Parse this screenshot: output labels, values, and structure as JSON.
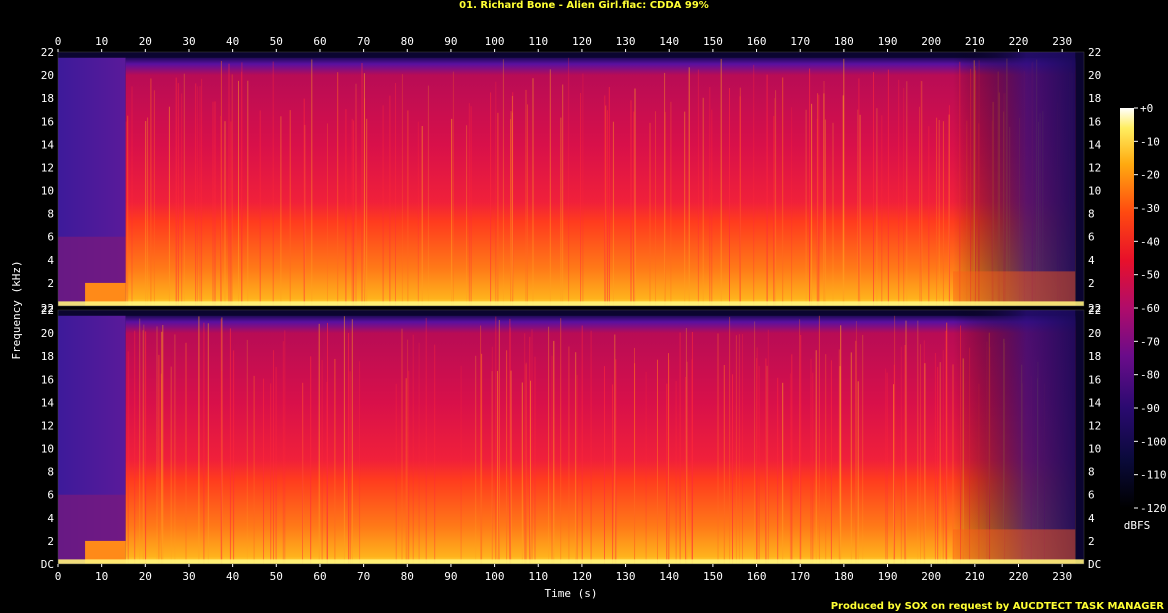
{
  "title": "01. Richard Bone - Alien Girl.flac: CDDA 99%",
  "footer": "Produced by SOX on request by AUCDTECT TASK MANAGER",
  "chart_data": {
    "type": "heatmap",
    "xlabel": "Time (s)",
    "ylabel": "Frequency (kHz)",
    "colorbar_label": "dBFS",
    "xlim": [
      0,
      235
    ],
    "ylim": [
      0,
      22
    ],
    "x_ticks": [
      0,
      10,
      20,
      30,
      40,
      50,
      60,
      70,
      80,
      90,
      100,
      110,
      120,
      130,
      140,
      150,
      160,
      170,
      180,
      190,
      200,
      210,
      220,
      230
    ],
    "y_ticks": [
      "DC",
      "2",
      "4",
      "6",
      "8",
      "10",
      "12",
      "14",
      "16",
      "18",
      "20",
      "22"
    ],
    "colorbar_ticks": [
      "+0",
      "-10",
      "-20",
      "-30",
      "-40",
      "-50",
      "-60",
      "-70",
      "-80",
      "-90",
      "-100",
      "-110",
      "-120"
    ],
    "colorbar_range": [
      -120,
      0
    ],
    "channels": [
      {
        "channel": "left",
        "onset_s": 15.5,
        "fade_start_s": 205,
        "end_s": 233,
        "energy_top_khz": 21.5,
        "dense_band_khz": [
          0,
          9
        ]
      },
      {
        "channel": "right",
        "onset_s": 15.5,
        "fade_start_s": 205,
        "end_s": 233,
        "energy_top_khz": 21.5,
        "dense_band_khz": [
          0,
          9
        ]
      }
    ],
    "colors": {
      "ticks": "#ffffff",
      "title": "#ffff33",
      "background": "#000000"
    }
  }
}
